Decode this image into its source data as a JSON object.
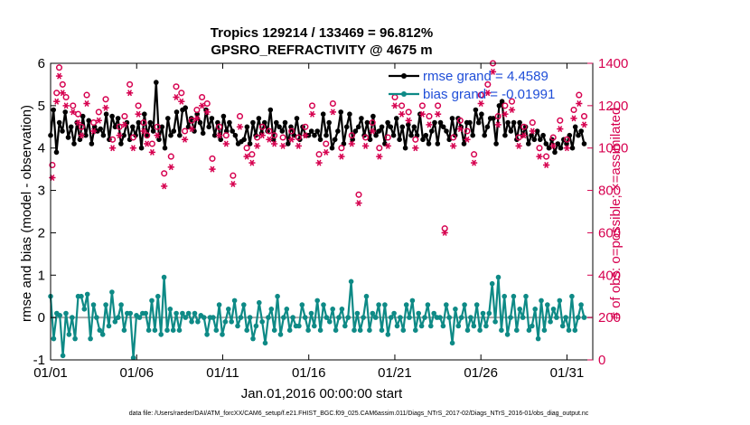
{
  "chart_data": {
    "type": "line",
    "title": "Tropics 129214 / 133469 = 96.812%",
    "subtitle": "GPSRO_REFRACTIVITY @ 4675 m",
    "xlabel": "Jan.01,2016 00:00:00 start",
    "ylabel": "rmse and bias (model - observation)",
    "y2label": "# of obs: o=possible; ×=assimilated",
    "footer": "data file: /Users/raeder/DAI/ATM_forcXX/CAM6_setup/f.e21.FHIST_BGC.f09_025.CAM6assim.011/Diags_NTrS_2017-02/Diags_NTrS_2016-01/obs_diag_output.nc",
    "xlim": [
      0,
      31.5
    ],
    "ylim": [
      -1,
      6
    ],
    "y2lim": [
      0,
      1400
    ],
    "x_ticks": [
      0,
      5,
      10,
      15,
      20,
      25,
      30
    ],
    "x_tick_labels": [
      "01/01",
      "01/06",
      "01/11",
      "01/16",
      "01/21",
      "01/26",
      "01/31"
    ],
    "y_ticks": [
      -1,
      0,
      1,
      2,
      3,
      4,
      5,
      6
    ],
    "y_tick_labels": [
      "-1",
      "0",
      "1",
      "2",
      "3",
      "4",
      "5",
      "6"
    ],
    "y2_ticks": [
      0,
      200,
      400,
      600,
      800,
      1000,
      1200,
      1400
    ],
    "y2_tick_labels": [
      "0",
      "200",
      "400",
      "600",
      "800",
      "1000",
      "1200",
      "1400"
    ],
    "legend": {
      "placement": "top-right",
      "entries": [
        "rmse grand = 4.4589",
        "bias grand = -0.01991"
      ]
    },
    "zero_line": 0,
    "colors": {
      "rmse": "#000000",
      "bias": "#0e8a86",
      "obs": "#d6004f",
      "zero": "#aaaaaa",
      "legend_text": "#1f4ed8"
    },
    "series": [
      {
        "name": "rmse",
        "axis": "left",
        "values": [
          4.3,
          4.9,
          3.9,
          4.6,
          4.4,
          4.85,
          4.25,
          4.5,
          4.1,
          4.6,
          4.2,
          4.75,
          4.3,
          4.65,
          4.1,
          4.5,
          4.4,
          4.45,
          4.3,
          4.8,
          4.2,
          4.75,
          4.5,
          4.7,
          4.1,
          4.3,
          4.6,
          4.2,
          4.5,
          4.3,
          4.6,
          4.0,
          4.8,
          4.3,
          4.6,
          4.4,
          5.55,
          4.2,
          4.5,
          4.0,
          4.7,
          4.3,
          4.4,
          4.85,
          4.3,
          4.9,
          4.95,
          4.5,
          4.7,
          4.4,
          4.8,
          4.6,
          4.35,
          4.9,
          4.5,
          4.7,
          4.3,
          4.6,
          4.2,
          4.75,
          4.4,
          4.6,
          4.4,
          4.3,
          4.1,
          4.15,
          4.2,
          4.5,
          4.1,
          4.6,
          4.3,
          4.7,
          4.35,
          4.6,
          4.4,
          4.9,
          4.2,
          4.6,
          4.5,
          4.4,
          4.6,
          4.1,
          4.5,
          4.3,
          4.7,
          4.2,
          4.5,
          4.3,
          4.3,
          4.4,
          4.3,
          4.4,
          4.2,
          4.8,
          4.3,
          4.6,
          4.0,
          4.2,
          4.4,
          4.85,
          4.1,
          4.5,
          4.8,
          4.2,
          4.4,
          4.5,
          4.7,
          4.3,
          4.6,
          4.2,
          4.75,
          4.3,
          4.4,
          4.5,
          4.1,
          4.6,
          4.5,
          4.3,
          4.7,
          4.2,
          4.5,
          4.0,
          4.55,
          4.3,
          4.5,
          4.3,
          4.8,
          4.2,
          4.3,
          4.1,
          4.4,
          4.6,
          4.1,
          4.6,
          4.5,
          4.4,
          4.2,
          4.7,
          4.3,
          4.7,
          4.5,
          4.1,
          4.6,
          4.6,
          4.3,
          4.9,
          4.6,
          4.8,
          4.3,
          4.5,
          4.7,
          4.7,
          4.1,
          5.0,
          5.1,
          4.3,
          4.6,
          4.4,
          4.6,
          4.2,
          4.6,
          4.3,
          4.5,
          4.1,
          4.3,
          4.2,
          4.4,
          4.2,
          4.3,
          4.1,
          4.0,
          4.2,
          3.9,
          4.1,
          4.0,
          4.2,
          4.1,
          4.3,
          4.0,
          4.5,
          4.3,
          4.4,
          4.1
        ]
      },
      {
        "name": "bias",
        "axis": "left",
        "values": [
          0.5,
          -0.5,
          0.1,
          0.05,
          -0.9,
          0.1,
          -0.4,
          0.0,
          -0.5,
          0.5,
          0.5,
          0.2,
          0.55,
          -0.5,
          0.3,
          0.0,
          -0.3,
          -0.4,
          0.3,
          -0.2,
          0.6,
          -0.1,
          0.0,
          0.3,
          -0.3,
          0.1,
          0.1,
          -0.95,
          0.05,
          0.0,
          0.1,
          0.1,
          -0.3,
          0.4,
          -0.3,
          0.5,
          -0.4,
          0.95,
          -0.3,
          0.2,
          -0.3,
          0.1,
          -0.3,
          0.1,
          0.0,
          0.1,
          -0.1,
          0.1,
          -0.1,
          0.05,
          0.0,
          -0.4,
          0.0,
          0.0,
          -0.3,
          0.3,
          -0.4,
          -0.1,
          0.2,
          -0.1,
          0.4,
          -0.2,
          0.0,
          0.3,
          -0.3,
          0.0,
          -0.5,
          -0.2,
          0.35,
          -0.1,
          -0.6,
          0.0,
          0.2,
          -0.3,
          0.5,
          -0.4,
          0.0,
          0.2,
          -0.3,
          0.0,
          -0.2,
          -0.2,
          0.3,
          0.0,
          -0.3,
          0.1,
          -0.2,
          0.4,
          -0.3,
          0.3,
          0.0,
          -0.1,
          0.2,
          -0.3,
          0.0,
          0.2,
          -0.2,
          0.0,
          0.85,
          -0.3,
          0.1,
          -0.3,
          0.0,
          0.5,
          -0.3,
          0.1,
          0.0,
          0.3,
          -0.3,
          0.3,
          -0.4,
          0.0,
          0.1,
          -0.2,
          0.0,
          -0.3,
          0.3,
          0.0,
          0.4,
          -0.3,
          0.1,
          -0.2,
          0.0,
          0.3,
          -0.2,
          0.1,
          0.0,
          0.0,
          -0.2,
          0.3,
          0.0,
          -0.6,
          0.2,
          -0.2,
          0.0,
          0.3,
          -0.3,
          0.0,
          -0.2,
          0.3,
          -0.3,
          0.1,
          -0.2,
          0.1,
          0.8,
          -0.1,
          0.95,
          -0.3,
          0.5,
          -0.4,
          0.0,
          0.5,
          -0.3,
          0.2,
          0.0,
          0.5,
          -0.3,
          -0.2,
          0.2,
          -0.5,
          0.4,
          -0.3,
          0.3,
          -0.1,
          0.2,
          0.0,
          0.4,
          -0.2,
          0.0,
          -0.3,
          0.5,
          -0.3,
          0.0,
          0.3,
          0.0
        ]
      },
      {
        "name": "possible",
        "axis": "right",
        "marker": "circle",
        "points": [
          [
            0.1,
            920
          ],
          [
            0.35,
            1260
          ],
          [
            0.5,
            1380
          ],
          [
            0.7,
            1300
          ],
          [
            0.9,
            1240
          ],
          [
            1.3,
            1200
          ],
          [
            1.6,
            1160
          ],
          [
            1.8,
            1100
          ],
          [
            2.1,
            1250
          ],
          [
            2.5,
            1120
          ],
          [
            2.8,
            1170
          ],
          [
            3.2,
            1230
          ],
          [
            3.6,
            1040
          ],
          [
            4.0,
            1100
          ],
          [
            4.3,
            1150
          ],
          [
            4.6,
            1300
          ],
          [
            4.8,
            1050
          ],
          [
            5.1,
            1200
          ],
          [
            5.4,
            1120
          ],
          [
            5.6,
            1060
          ],
          [
            5.9,
            1020
          ],
          [
            6.2,
            1100
          ],
          [
            6.6,
            880
          ],
          [
            7.0,
            960
          ],
          [
            7.3,
            1290
          ],
          [
            7.6,
            1260
          ],
          [
            7.8,
            1080
          ],
          [
            8.2,
            1130
          ],
          [
            8.5,
            1180
          ],
          [
            8.8,
            1240
          ],
          [
            9.1,
            1210
          ],
          [
            9.4,
            950
          ],
          [
            9.8,
            1100
          ],
          [
            10.2,
            1060
          ],
          [
            10.6,
            870
          ],
          [
            11.0,
            1150
          ],
          [
            11.4,
            1000
          ],
          [
            11.7,
            970
          ],
          [
            12.0,
            1050
          ],
          [
            12.3,
            1100
          ],
          [
            12.7,
            1080
          ],
          [
            13.0,
            1060
          ],
          [
            13.5,
            1050
          ],
          [
            14.0,
            1080
          ],
          [
            14.4,
            1050
          ],
          [
            14.8,
            1100
          ],
          [
            15.2,
            1200
          ],
          [
            15.6,
            970
          ],
          [
            16.0,
            1020
          ],
          [
            16.4,
            1210
          ],
          [
            16.9,
            1000
          ],
          [
            17.5,
            1060
          ],
          [
            17.9,
            780
          ],
          [
            18.3,
            1050
          ],
          [
            18.7,
            1120
          ],
          [
            19.1,
            1000
          ],
          [
            19.6,
            1050
          ],
          [
            20.0,
            1240
          ],
          [
            20.4,
            1200
          ],
          [
            20.8,
            1170
          ],
          [
            21.2,
            1040
          ],
          [
            21.6,
            1200
          ],
          [
            22.0,
            1150
          ],
          [
            22.5,
            1200
          ],
          [
            22.9,
            620
          ],
          [
            23.4,
            1050
          ],
          [
            23.8,
            1130
          ],
          [
            24.2,
            1080
          ],
          [
            24.6,
            970
          ],
          [
            25.0,
            1250
          ],
          [
            25.4,
            1300
          ],
          [
            25.7,
            1400
          ],
          [
            26.0,
            1150
          ],
          [
            26.4,
            1200
          ],
          [
            26.8,
            1220
          ],
          [
            27.2,
            1050
          ],
          [
            27.5,
            1100
          ],
          [
            28.0,
            1120
          ],
          [
            28.4,
            1000
          ],
          [
            28.8,
            960
          ],
          [
            29.2,
            1050
          ],
          [
            29.6,
            1130
          ],
          [
            30.0,
            1040
          ],
          [
            30.4,
            1180
          ],
          [
            30.7,
            1250
          ],
          [
            31.0,
            1150
          ]
        ]
      },
      {
        "name": "assimilated",
        "axis": "right",
        "marker": "asterisk",
        "points": [
          [
            0.1,
            860
          ],
          [
            0.35,
            1220
          ],
          [
            0.5,
            1340
          ],
          [
            0.7,
            1260
          ],
          [
            0.9,
            1200
          ],
          [
            1.3,
            1170
          ],
          [
            1.6,
            1120
          ],
          [
            1.8,
            1060
          ],
          [
            2.1,
            1210
          ],
          [
            2.5,
            1080
          ],
          [
            2.8,
            1130
          ],
          [
            3.2,
            1190
          ],
          [
            3.6,
            1000
          ],
          [
            4.0,
            1060
          ],
          [
            4.3,
            1110
          ],
          [
            4.6,
            1260
          ],
          [
            4.8,
            1000
          ],
          [
            5.1,
            1160
          ],
          [
            5.4,
            1080
          ],
          [
            5.6,
            1020
          ],
          [
            5.9,
            980
          ],
          [
            6.2,
            1060
          ],
          [
            6.6,
            820
          ],
          [
            7.0,
            910
          ],
          [
            7.3,
            1240
          ],
          [
            7.6,
            1220
          ],
          [
            7.8,
            1040
          ],
          [
            8.2,
            1090
          ],
          [
            8.5,
            1140
          ],
          [
            8.8,
            1200
          ],
          [
            9.1,
            1170
          ],
          [
            9.4,
            900
          ],
          [
            9.8,
            1060
          ],
          [
            10.2,
            1020
          ],
          [
            10.6,
            830
          ],
          [
            11.0,
            1100
          ],
          [
            11.4,
            960
          ],
          [
            11.7,
            930
          ],
          [
            12.0,
            1010
          ],
          [
            12.3,
            1060
          ],
          [
            12.7,
            1040
          ],
          [
            13.0,
            1020
          ],
          [
            13.5,
            1010
          ],
          [
            14.0,
            1040
          ],
          [
            14.4,
            1010
          ],
          [
            14.8,
            1060
          ],
          [
            15.2,
            1160
          ],
          [
            15.6,
            930
          ],
          [
            16.0,
            980
          ],
          [
            16.4,
            1170
          ],
          [
            16.9,
            960
          ],
          [
            17.5,
            1020
          ],
          [
            17.9,
            740
          ],
          [
            18.3,
            1010
          ],
          [
            18.7,
            1080
          ],
          [
            19.1,
            960
          ],
          [
            19.6,
            1010
          ],
          [
            20.0,
            1200
          ],
          [
            20.4,
            1160
          ],
          [
            20.8,
            1130
          ],
          [
            21.2,
            1000
          ],
          [
            21.6,
            1160
          ],
          [
            22.0,
            1110
          ],
          [
            22.5,
            1160
          ],
          [
            22.9,
            600
          ],
          [
            23.4,
            1010
          ],
          [
            23.8,
            1090
          ],
          [
            24.2,
            1040
          ],
          [
            24.6,
            930
          ],
          [
            25.0,
            1210
          ],
          [
            25.4,
            1260
          ],
          [
            25.7,
            1360
          ],
          [
            26.0,
            1110
          ],
          [
            26.4,
            1160
          ],
          [
            26.8,
            1180
          ],
          [
            27.2,
            1010
          ],
          [
            27.5,
            1060
          ],
          [
            28.0,
            1080
          ],
          [
            28.4,
            960
          ],
          [
            28.8,
            920
          ],
          [
            29.2,
            1010
          ],
          [
            29.6,
            1090
          ],
          [
            30.0,
            1000
          ],
          [
            30.4,
            1140
          ],
          [
            30.7,
            1210
          ],
          [
            31.0,
            1110
          ]
        ]
      }
    ]
  }
}
